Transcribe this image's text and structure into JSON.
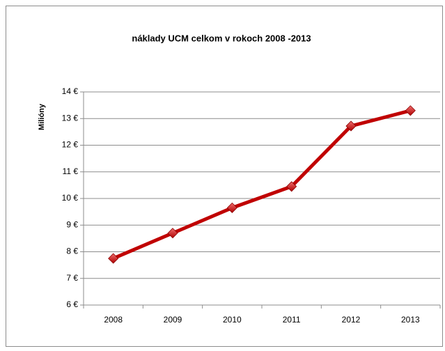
{
  "chart_data": {
    "type": "line",
    "title": "náklady UCM celkom v rokoch 2008 -2013",
    "y_label": "Milióny",
    "categories": [
      "2008",
      "2009",
      "2010",
      "2011",
      "2012",
      "2013"
    ],
    "values": [
      7.75,
      8.7,
      9.65,
      10.45,
      12.72,
      13.3
    ],
    "color": "#c00000",
    "ylim": [
      6,
      14
    ],
    "yticks": [
      {
        "value": 6,
        "label": "6 €"
      },
      {
        "value": 7,
        "label": "7 €"
      },
      {
        "value": 8,
        "label": "8 €"
      },
      {
        "value": 9,
        "label": "9 €"
      },
      {
        "value": 10,
        "label": "10 €"
      },
      {
        "value": 11,
        "label": "11 €"
      },
      {
        "value": 12,
        "label": "12 €"
      },
      {
        "value": 13,
        "label": "13 €"
      },
      {
        "value": 14,
        "label": "14 €"
      }
    ],
    "grid": true
  }
}
